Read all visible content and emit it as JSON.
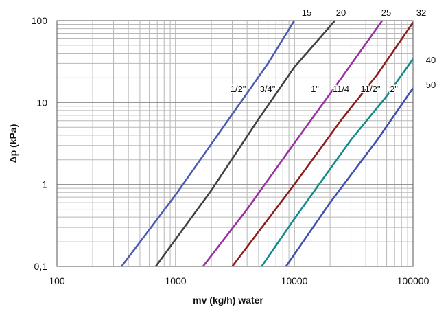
{
  "chart_data": {
    "type": "line",
    "title": "",
    "xlabel": "mv (kg/h) water",
    "ylabel": "Δp (kPa)",
    "x_scale": "log",
    "y_scale": "log",
    "xlim": [
      100,
      100000
    ],
    "ylim": [
      0.1,
      100
    ],
    "grid": true,
    "x_ticks": [
      {
        "v": 100,
        "label": "100"
      },
      {
        "v": 1000,
        "label": "1000"
      },
      {
        "v": 10000,
        "label": "10000"
      },
      {
        "v": 100000,
        "label": "100000"
      }
    ],
    "y_ticks": [
      {
        "v": 0.1,
        "label": "0,1"
      },
      {
        "v": 1,
        "label": "1"
      },
      {
        "v": 10,
        "label": "10"
      },
      {
        "v": 100,
        "label": "100"
      }
    ],
    "series": [
      {
        "name": "15",
        "size_label": "1/2\"",
        "color": "#4a5bb0",
        "points": [
          [
            350,
            0.1
          ],
          [
            1000,
            0.75
          ],
          [
            3000,
            7.2
          ],
          [
            6000,
            30
          ],
          [
            10000,
            100
          ]
        ]
      },
      {
        "name": "20",
        "size_label": "3/4\"",
        "color": "#404040",
        "points": [
          [
            680,
            0.1
          ],
          [
            2000,
            0.85
          ],
          [
            5000,
            6.3
          ],
          [
            10000,
            27
          ],
          [
            22000,
            100
          ]
        ]
      },
      {
        "name": "25",
        "size_label": "1\"",
        "color": "#9a2fa0",
        "points": [
          [
            1700,
            0.1
          ],
          [
            4000,
            0.5
          ],
          [
            10000,
            3.2
          ],
          [
            25000,
            20
          ],
          [
            55000,
            100
          ]
        ]
      },
      {
        "name": "32",
        "size_label": "11/4",
        "color": "#8b1c1c",
        "points": [
          [
            3000,
            0.1
          ],
          [
            10000,
            1.0
          ],
          [
            25000,
            6.2
          ],
          [
            50000,
            22
          ],
          [
            100000,
            95
          ]
        ]
      },
      {
        "name": "40",
        "size_label": "11/2\"",
        "color": "#138a8a",
        "points": [
          [
            5300,
            0.1
          ],
          [
            10000,
            0.38
          ],
          [
            30000,
            3.5
          ],
          [
            60000,
            12
          ],
          [
            100000,
            34
          ]
        ]
      },
      {
        "name": "50",
        "size_label": "2\"",
        "color": "#3f4fb0",
        "points": [
          [
            8500,
            0.1
          ],
          [
            20000,
            0.6
          ],
          [
            50000,
            3.5
          ],
          [
            100000,
            15
          ]
        ]
      }
    ]
  }
}
